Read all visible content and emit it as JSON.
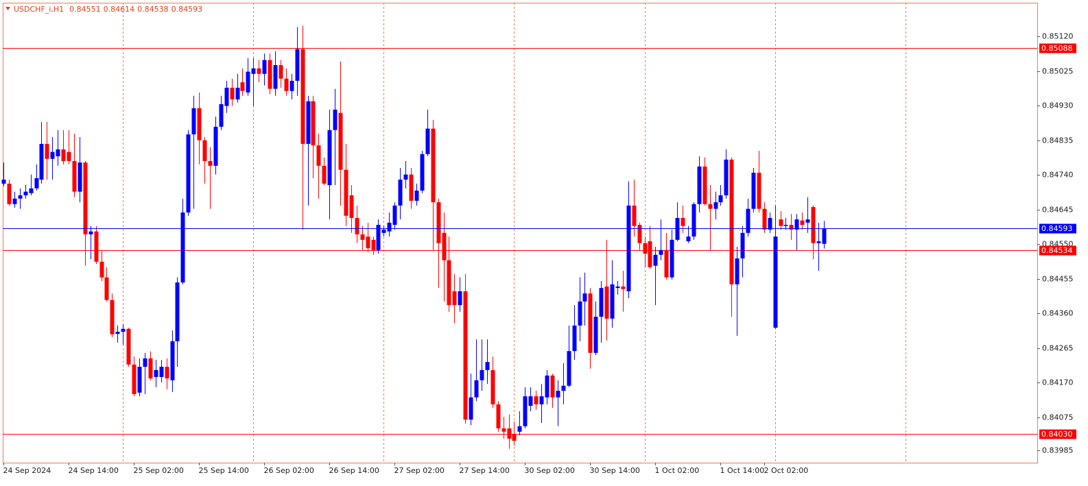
{
  "chart_data": {
    "type": "candlestick",
    "title": "USDCHF_i,H1",
    "bull_color": "#0000ff",
    "bear_color": "#ff0000",
    "bid_color": "#0000ff",
    "grid": false,
    "ylim": [
      0.83951,
      0.85212
    ],
    "yticks": [
      {
        "value": 0.8512,
        "label": "0.85120"
      },
      0.85025,
      {
        "value": 0.8493,
        "label": "0.84930"
      },
      0.84835,
      {
        "value": 0.8474,
        "label": "0.84740"
      },
      0.84645,
      {
        "value": 0.8455,
        "label": "0.84550"
      },
      0.84455,
      {
        "value": 0.8436,
        "label": "0.84360"
      },
      0.84265,
      {
        "value": 0.8417,
        "label": "0.84170"
      },
      0.84075,
      0.83985
    ],
    "levels": [
      {
        "value": 0.85088,
        "color": "#ff0000"
      },
      {
        "value": 0.84534,
        "color": "#ff0000"
      },
      {
        "value": 0.8403,
        "label": "0.84030",
        "color": "#ff0000"
      }
    ],
    "xticks": [
      {
        "value": 0,
        "label": "24 Sep 2024"
      },
      {
        "value": 12,
        "label": "24 Sep 14:00"
      },
      {
        "value": 24,
        "label": "25 Sep 02:00"
      },
      {
        "value": 36,
        "label": "25 Sep 14:00"
      },
      {
        "value": 48,
        "label": "26 Sep 02:00"
      },
      {
        "value": 60,
        "label": "26 Sep 14:00"
      },
      {
        "value": 72,
        "label": "27 Sep 02:00"
      },
      {
        "value": 84,
        "label": "27 Sep 14:00"
      },
      {
        "value": 96,
        "label": "30 Sep 02:00"
      },
      {
        "value": 108,
        "label": "30 Sep 14:00"
      },
      {
        "value": 120,
        "label": "1 Oct 02:00"
      },
      {
        "value": 132,
        "label": "1 Oct 14:00"
      },
      {
        "value": 140,
        "label": "2 Oct 02:00"
      }
    ],
    "separators": [
      22,
      46,
      70,
      94,
      118,
      142,
      166
    ],
    "open": [
      0.84716,
      0.84716,
      0.8466,
      0.84675,
      0.84684,
      0.8469,
      0.84703,
      0.84727,
      0.84825,
      0.84784,
      0.84791,
      0.8481,
      0.84803,
      0.84778,
      0.84694,
      0.84774,
      0.84577,
      0.84585,
      0.84502,
      0.84459,
      0.84397,
      0.84304,
      0.8431,
      0.84318,
      0.8422,
      0.84143,
      0.84214,
      0.84237,
      0.84186,
      0.84186,
      0.84214,
      0.84177,
      0.84284,
      0.84445,
      0.84637,
      0.84851,
      0.84923,
      0.84835,
      0.84778,
      0.84765,
      0.84872,
      0.84929,
      0.84979,
      0.84947,
      0.84994,
      0.84966,
      0.85017,
      0.85032,
      0.85017,
      0.85055,
      0.84976,
      0.85041,
      0.85004,
      0.8497,
      0.84998,
      0.85085,
      0.84825,
      0.84942,
      0.84821,
      0.84765,
      0.84712,
      0.84863,
      0.8491,
      0.84754,
      0.84684,
      0.84622,
      0.84577,
      0.84571,
      0.84562,
      0.84534,
      0.84581,
      0.84585,
      0.84603,
      0.84656,
      0.84727,
      0.84741,
      0.84669,
      0.84697,
      0.84797,
      0.84867,
      0.84665,
      0.84581,
      0.84506,
      0.84421,
      0.84383,
      0.84421,
      0.84069,
      0.8413,
      0.84177,
      0.84205,
      0.84205,
      0.84111,
      0.84045,
      0.84045,
      0.8403,
      0.84036,
      0.84051,
      0.84107,
      0.84133,
      0.84111,
      0.8413,
      0.8419,
      0.8413,
      0.84148,
      0.84162,
      0.84257,
      0.84327,
      0.84393,
      0.84415,
      0.84252,
      0.84351,
      0.84434,
      0.84346,
      0.8443,
      0.84434,
      0.84421,
      0.84656,
      0.84603,
      0.84553,
      0.84558,
      0.84491,
      0.84521,
      0.84534,
      0.84459,
      0.84562,
      0.84622,
      0.84558,
      0.84571,
      0.8466,
      0.84763,
      0.8466,
      0.84647,
      0.84665,
      0.84684,
      0.84782,
      0.8444,
      0.84511,
      0.84581,
      0.84647,
      0.84746,
      0.84647,
      0.8459,
      0.84321,
      0.84618,
      0.846,
      0.84603,
      0.8459,
      0.84615,
      0.84609,
      0.84652,
      0.84553,
      0.84551
    ],
    "high": [
      0.84774,
      0.84727,
      0.84694,
      0.84703,
      0.84712,
      0.84741,
      0.84769,
      0.84885,
      0.84885,
      0.84844,
      0.84863,
      0.84863,
      0.84863,
      0.84853,
      0.84844,
      0.84778,
      0.846,
      0.846,
      0.84534,
      0.84487,
      0.84415,
      0.84327,
      0.84331,
      0.84321,
      0.84242,
      0.84237,
      0.84252,
      0.84256,
      0.84233,
      0.84233,
      0.84237,
      0.84314,
      0.84459,
      0.84675,
      0.84863,
      0.84957,
      0.84966,
      0.84844,
      0.84816,
      0.849,
      0.84957,
      0.84998,
      0.85004,
      0.85017,
      0.85032,
      0.8506,
      0.8506,
      0.85055,
      0.85073,
      0.85073,
      0.85079,
      0.85055,
      0.85032,
      0.85017,
      0.85145,
      0.85149,
      0.84957,
      0.84957,
      0.84853,
      0.84788,
      0.84919,
      0.84976,
      0.85051,
      0.84825,
      0.84712,
      0.84656,
      0.846,
      0.84609,
      0.84571,
      0.84618,
      0.846,
      0.84637,
      0.84665,
      0.84759,
      0.84778,
      0.84759,
      0.84716,
      0.84806,
      0.84919,
      0.84891,
      0.84675,
      0.84637,
      0.84571,
      0.84468,
      0.84459,
      0.84468,
      0.84195,
      0.84289,
      0.84289,
      0.84289,
      0.84242,
      0.8412,
      0.84077,
      0.84083,
      0.84064,
      0.84092,
      0.84158,
      0.84158,
      0.84148,
      0.84167,
      0.84205,
      0.84195,
      0.84177,
      0.84224,
      0.84327,
      0.84383,
      0.84459,
      0.84472,
      0.8443,
      0.84393,
      0.84449,
      0.84562,
      0.84506,
      0.84449,
      0.84477,
      0.84722,
      0.84727,
      0.84609,
      0.84571,
      0.846,
      0.84543,
      0.84618,
      0.84581,
      0.8459,
      0.84665,
      0.84656,
      0.846,
      0.84665,
      0.84791,
      0.84788,
      0.84712,
      0.84694,
      0.84712,
      0.8481,
      0.84788,
      0.84543,
      0.846,
      0.84675,
      0.84759,
      0.84806,
      0.84665,
      0.84637,
      0.84656,
      0.84641,
      0.84622,
      0.84633,
      0.84633,
      0.84637,
      0.84679,
      0.84656,
      0.84609,
      0.84614
    ],
    "low": [
      0.84709,
      0.84656,
      0.8465,
      0.84647,
      0.84675,
      0.84684,
      0.84697,
      0.84716,
      0.84727,
      0.84727,
      0.84765,
      0.84769,
      0.84769,
      0.84679,
      0.84665,
      0.84491,
      0.84509,
      0.84496,
      0.84449,
      0.84393,
      0.84295,
      0.8428,
      0.84274,
      0.84214,
      0.84133,
      0.84133,
      0.84139,
      0.84177,
      0.84158,
      0.84171,
      0.84152,
      0.84145,
      0.84214,
      0.8444,
      0.84628,
      0.84647,
      0.84769,
      0.84716,
      0.84647,
      0.84741,
      0.84863,
      0.8491,
      0.84929,
      0.84938,
      0.84957,
      0.84957,
      0.84929,
      0.84994,
      0.84985,
      0.84961,
      0.84957,
      0.84979,
      0.84957,
      0.84947,
      0.84957,
      0.8459,
      0.84656,
      0.84731,
      0.84675,
      0.84712,
      0.84618,
      0.84712,
      0.84656,
      0.846,
      0.84581,
      0.84553,
      0.84534,
      0.84528,
      0.84521,
      0.84524,
      0.84571,
      0.84571,
      0.8459,
      0.84618,
      0.84703,
      0.84647,
      0.84656,
      0.8469,
      0.84791,
      0.84534,
      0.8443,
      0.84393,
      0.84365,
      0.84333,
      0.84365,
      0.84058,
      0.84054,
      0.8412,
      0.84148,
      0.84167,
      0.84101,
      0.84036,
      0.84017,
      0.83989,
      0.83998,
      0.84026,
      0.84045,
      0.84092,
      0.84096,
      0.8406,
      0.84111,
      0.84101,
      0.84051,
      0.84111,
      0.84158,
      0.84233,
      0.84284,
      0.84327,
      0.84209,
      0.84246,
      0.8428,
      0.84286,
      0.84321,
      0.84412,
      0.84365,
      0.84402,
      0.84571,
      0.84534,
      0.84487,
      0.84483,
      0.84383,
      0.84506,
      0.84453,
      0.84453,
      0.84558,
      0.84581,
      0.84553,
      0.84562,
      0.84637,
      0.84656,
      0.84534,
      0.84618,
      0.84656,
      0.84675,
      0.84351,
      0.84299,
      0.84459,
      0.84571,
      0.84637,
      0.84637,
      0.84581,
      0.84581,
      0.84318,
      0.8459,
      0.8459,
      0.84562,
      0.84534,
      0.8459,
      0.84581,
      0.84509,
      0.84477,
      0.84538
    ],
    "close": [
      0.84727,
      0.8466,
      0.84675,
      0.84684,
      0.84694,
      0.84703,
      0.84731,
      0.84825,
      0.84784,
      0.84803,
      0.8481,
      0.84778,
      0.84778,
      0.84694,
      0.84774,
      0.84577,
      0.84585,
      0.84502,
      0.84459,
      0.84397,
      0.84303,
      0.8431,
      0.84318,
      0.8422,
      0.84139,
      0.84214,
      0.84237,
      0.84182,
      0.84205,
      0.84214,
      0.84182,
      0.84284,
      0.84445,
      0.84637,
      0.84851,
      0.84923,
      0.84835,
      0.84778,
      0.84765,
      0.84872,
      0.84934,
      0.84979,
      0.84947,
      0.84979,
      0.8497,
      0.85023,
      0.85032,
      0.85017,
      0.85055,
      0.84976,
      0.85041,
      0.85004,
      0.8497,
      0.84998,
      0.85085,
      0.84825,
      0.84942,
      0.84821,
      0.84765,
      0.84716,
      0.84863,
      0.84919,
      0.84754,
      0.84628,
      0.84622,
      0.84577,
      0.84562,
      0.84539,
      0.84534,
      0.84603,
      0.8459,
      0.84609,
      0.84656,
      0.84727,
      0.84741,
      0.84669,
      0.84697,
      0.84797,
      0.84867,
      0.84665,
      0.84553,
      0.84506,
      0.84383,
      0.84383,
      0.84421,
      0.84069,
      0.8413,
      0.84177,
      0.84205,
      0.84227,
      0.84111,
      0.84045,
      0.84036,
      0.84017,
      0.84011,
      0.84051,
      0.84133,
      0.84133,
      0.84111,
      0.84133,
      0.8419,
      0.8413,
      0.84148,
      0.84162,
      0.84257,
      0.84327,
      0.84393,
      0.84415,
      0.84252,
      0.84351,
      0.8443,
      0.84346,
      0.8444,
      0.84434,
      0.84427,
      0.84656,
      0.846,
      0.84553,
      0.84524,
      0.84487,
      0.84521,
      0.84534,
      0.84459,
      0.84562,
      0.84622,
      0.846,
      0.84571,
      0.8466,
      0.84763,
      0.8466,
      0.84647,
      0.84665,
      0.84684,
      0.84782,
      0.8444,
      0.84511,
      0.84581,
      0.84647,
      0.84746,
      0.84647,
      0.8459,
      0.84622,
      0.84571,
      0.846,
      0.84603,
      0.8459,
      0.84618,
      0.84603,
      0.84618,
      0.84553,
      0.84558,
      0.84593
    ]
  }
}
